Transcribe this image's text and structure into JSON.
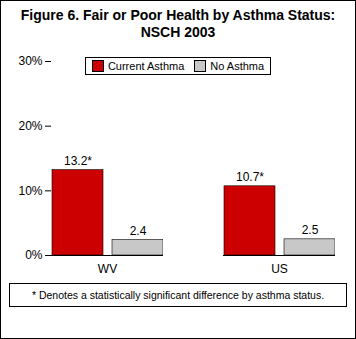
{
  "chart_data": {
    "type": "bar",
    "title": "Figure 6.  Fair or Poor Health by Asthma Status: NSCH 2003",
    "categories": [
      "WV",
      "US"
    ],
    "series": [
      {
        "name": "Current Asthma",
        "color": "#cc0000",
        "values": [
          13.2,
          10.7
        ],
        "value_labels": [
          "13.2*",
          "10.7*"
        ]
      },
      {
        "name": "No Asthma",
        "color": "#c8c8c8",
        "values": [
          2.4,
          2.5
        ]
      }
    ],
    "ylim": [
      0,
      30
    ],
    "yticks": [
      {
        "value": 0,
        "label": "0%"
      },
      {
        "value": 10,
        "label": "10%"
      },
      {
        "value": 20,
        "label": "20%"
      },
      {
        "value": 30,
        "label": "30%"
      }
    ],
    "grid": false,
    "legend": "top",
    "data_labels": true,
    "annotations": [
      "* Denotes a statistically significant difference by asthma status."
    ]
  }
}
